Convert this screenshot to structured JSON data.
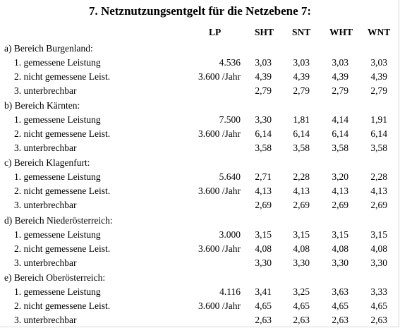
{
  "title": "7. Netznutzungsentgelt für die Netzebene 7:",
  "columns": [
    "LP",
    "SHT",
    "SNT",
    "WHT",
    "WNT"
  ],
  "sections": [
    {
      "label": "a) Bereich Burgenland:",
      "rows": [
        {
          "label": "1. gemessene Leistung",
          "lp": "4.536",
          "sht": "3,03",
          "snt": "3,03",
          "wht": "3,03",
          "wnt": "3,03"
        },
        {
          "label": "2. nicht gemessene Leist.",
          "lp": "3.600 /Jahr",
          "sht": "4,39",
          "snt": "4,39",
          "wht": "4,39",
          "wnt": "4,39"
        },
        {
          "label": "3. unterbrechbar",
          "lp": "",
          "sht": "2,79",
          "snt": "2,79",
          "wht": "2,79",
          "wnt": "2,79"
        }
      ]
    },
    {
      "label": "b) Bereich Kärnten:",
      "rows": [
        {
          "label": "1. gemessene Leistung",
          "lp": "7.500",
          "sht": "3,30",
          "snt": "1,81",
          "wht": "4,14",
          "wnt": "1,91"
        },
        {
          "label": "2. nicht gemessene Leist.",
          "lp": "3.600 /Jahr",
          "sht": "6,14",
          "snt": "6,14",
          "wht": "6,14",
          "wnt": "6,14"
        },
        {
          "label": "3. unterbrechbar",
          "lp": "",
          "sht": "3,58",
          "snt": "3,58",
          "wht": "3,58",
          "wnt": "3,58"
        }
      ]
    },
    {
      "label": "c) Bereich Klagenfurt:",
      "rows": [
        {
          "label": "1. gemessene Leistung",
          "lp": "5.640",
          "sht": "2,71",
          "snt": "2,28",
          "wht": "3,20",
          "wnt": "2,28"
        },
        {
          "label": "2. nicht gemessene Leist.",
          "lp": "3.600 /Jahr",
          "sht": "4,13",
          "snt": "4,13",
          "wht": "4,13",
          "wnt": "4,13"
        },
        {
          "label": "3. unterbrechbar",
          "lp": "",
          "sht": "2,69",
          "snt": "2,69",
          "wht": "2,69",
          "wnt": "2,69"
        }
      ]
    },
    {
      "label": "d) Bereich Niederösterreich:",
      "rows": [
        {
          "label": "1. gemessene Leistung",
          "lp": "3.000",
          "sht": "3,15",
          "snt": "3,15",
          "wht": "3,15",
          "wnt": "3,15"
        },
        {
          "label": "2. nicht gemessene Leist.",
          "lp": "3.600 /Jahr",
          "sht": "4,08",
          "snt": "4,08",
          "wht": "4,08",
          "wnt": "4,08"
        },
        {
          "label": "3. unterbrechbar",
          "lp": "",
          "sht": "3,30",
          "snt": "3,30",
          "wht": "3,30",
          "wnt": "3,30"
        }
      ]
    },
    {
      "label": "e) Bereich Oberösterreich:",
      "rows": [
        {
          "label": "1. gemessene Leistung",
          "lp": "4.116",
          "sht": "3,41",
          "snt": "3,25",
          "wht": "3,63",
          "wnt": "3,33"
        },
        {
          "label": "2. nicht gemessene Leist.",
          "lp": "3.600 /Jahr",
          "sht": "4,65",
          "snt": "4,65",
          "wht": "4,65",
          "wnt": "4,65"
        },
        {
          "label": "3. unterbrechbar",
          "lp": "",
          "sht": "2,63",
          "snt": "2,63",
          "wht": "2,63",
          "wnt": "2,63"
        }
      ]
    }
  ]
}
